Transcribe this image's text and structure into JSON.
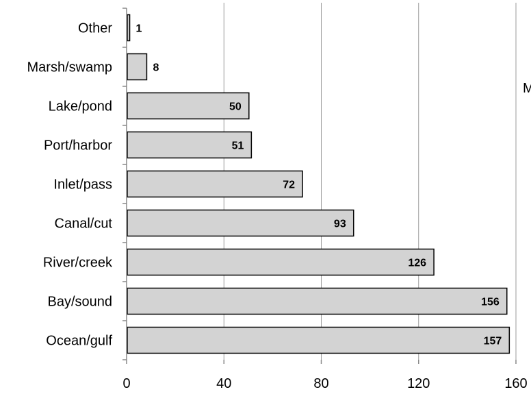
{
  "chart_data": {
    "type": "bar",
    "orientation": "horizontal",
    "categories": [
      "Ocean/gulf",
      "Bay/sound",
      "River/creek",
      "Canal/cut",
      "Inlet/pass",
      "Port/harbor",
      "Lake/pond",
      "Marsh/swamp",
      "Other"
    ],
    "values": [
      157,
      156,
      126,
      93,
      72,
      51,
      50,
      8,
      1
    ],
    "xlim": [
      0,
      160
    ],
    "xticks": [
      0,
      40,
      80,
      120,
      160
    ],
    "xtick_labels": [
      "0",
      "40",
      "80",
      "120",
      "160"
    ],
    "title": "",
    "xlabel": "",
    "ylabel": "",
    "grid": "vertical",
    "legend": "none",
    "colors": {
      "bar_fill": "#d3d3d3",
      "bar_stroke": "#000000",
      "grid": "#999999",
      "axis": "#888888"
    }
  },
  "stray_text": "M"
}
